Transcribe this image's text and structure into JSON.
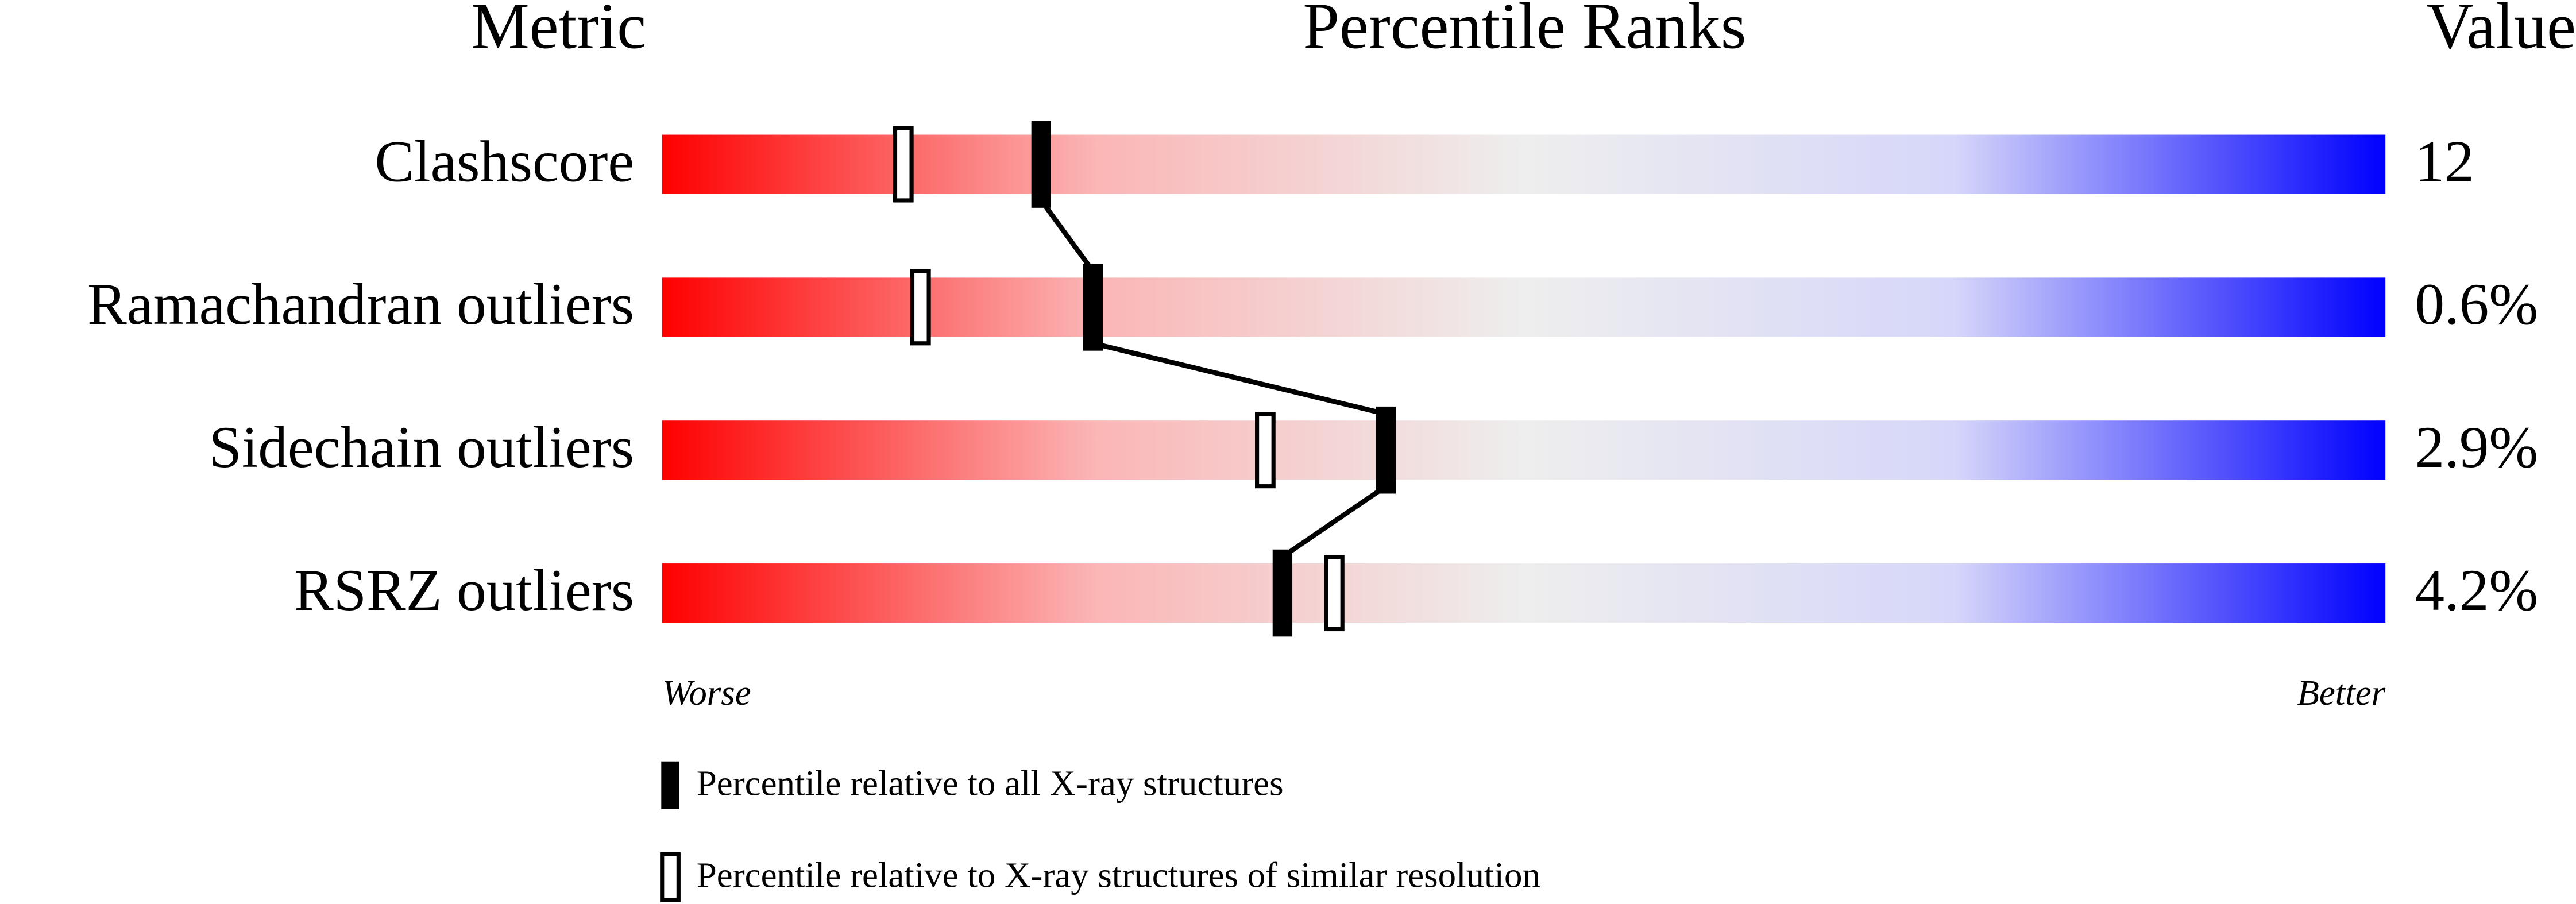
{
  "chart_data": {
    "type": "slider",
    "headers": {
      "metric": "Metric",
      "ranks": "Percentile Ranks",
      "value": "Value"
    },
    "categories": [
      "Clashscore",
      "Ramachandran outliers",
      "Sidechain outliers",
      "RSRZ outliers"
    ],
    "metric_values": [
      "12",
      "0.6%",
      "2.9%",
      "4.2%"
    ],
    "xlim": [
      0,
      100
    ],
    "axis_labels": {
      "low": "Worse",
      "high": "Better"
    },
    "series": [
      {
        "name": "Percentile relative to all X-ray structures",
        "color": "#000000",
        "values": [
          22,
          25,
          42,
          36
        ]
      },
      {
        "name": "Percentile relative to X-ray structures of similar resolution",
        "color": "#ffffff",
        "values": [
          14,
          15,
          35,
          39
        ]
      }
    ]
  }
}
